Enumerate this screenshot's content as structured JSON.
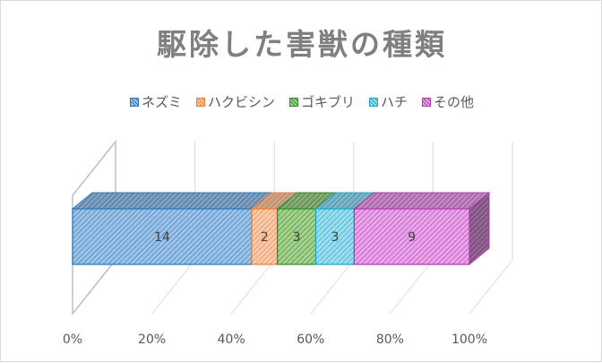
{
  "chart_data": {
    "type": "bar",
    "stacked": "100%",
    "orientation": "horizontal",
    "three_d": true,
    "title": "駆除した害獣の種類",
    "categories": [
      ""
    ],
    "series": [
      {
        "name": "ネズミ",
        "values": [
          14
        ],
        "color": "#2e75b6",
        "fill": "#9dc3e6"
      },
      {
        "name": "ハクビシン",
        "values": [
          2
        ],
        "color": "#ed7d31",
        "fill": "#f8cbad"
      },
      {
        "name": "ゴキブリ",
        "values": [
          3
        ],
        "color": "#2e8b2e",
        "fill": "#a9d18e"
      },
      {
        "name": "ハチ",
        "values": [
          3
        ],
        "color": "#1aa7c9",
        "fill": "#9edcf0"
      },
      {
        "name": "その他",
        "values": [
          9
        ],
        "color": "#b03ab0",
        "fill": "#e9a6e9"
      }
    ],
    "xaxis": {
      "ticks": [
        "0%",
        "20%",
        "40%",
        "60%",
        "80%",
        "100%"
      ],
      "range": [
        0,
        1
      ]
    },
    "legend_position": "top",
    "gridlines": true
  }
}
